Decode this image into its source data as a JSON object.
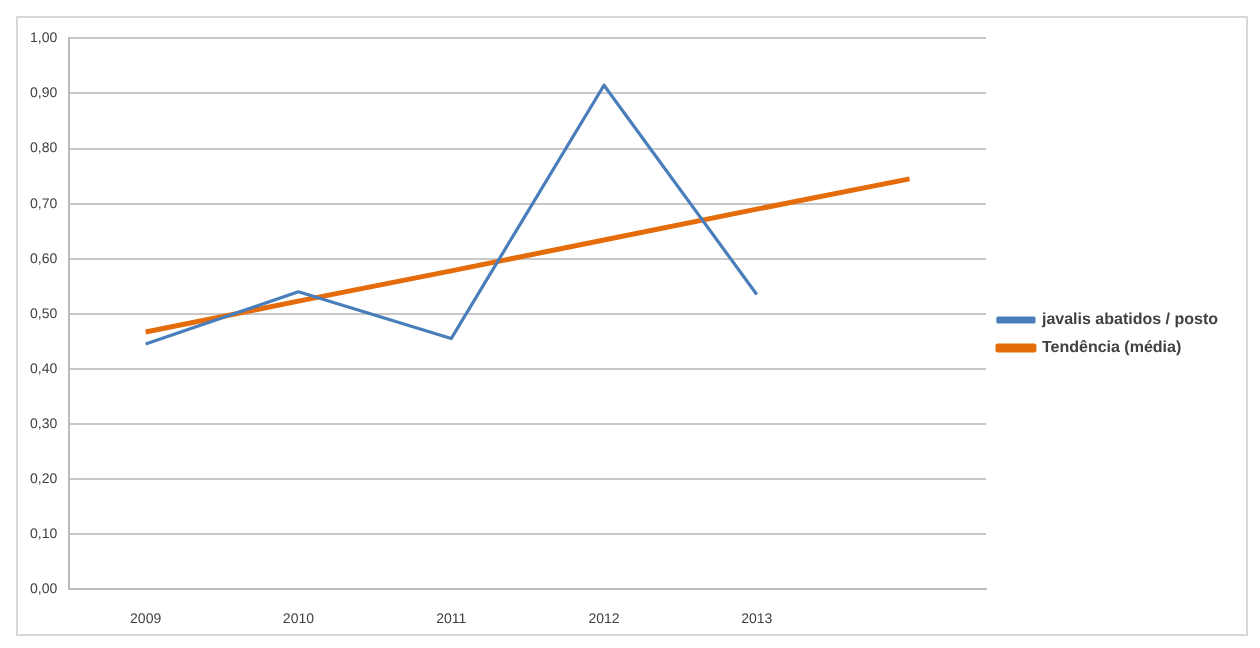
{
  "chart_data": {
    "type": "line",
    "categories": [
      "2009",
      "2010",
      "2011",
      "2012",
      "2013",
      null
    ],
    "series": [
      {
        "name": "javalis abatidos / posto",
        "color": "#4a7ebb",
        "values": [
          0.445,
          0.54,
          0.455,
          0.915,
          0.535,
          null
        ]
      },
      {
        "name": "Tendência (média)",
        "color": "#e46c0a",
        "values": [
          0.467,
          0.523,
          0.578,
          0.634,
          0.69,
          0.745
        ]
      }
    ],
    "ylim": [
      0,
      1
    ],
    "yticks": [
      {
        "value": 0,
        "label": "0,00"
      },
      {
        "value": 0.1,
        "label": "0,10"
      },
      {
        "value": 0.2,
        "label": "0,20"
      },
      {
        "value": 0.3,
        "label": "0,30"
      },
      {
        "value": 0.4,
        "label": "0,40"
      },
      {
        "value": 0.5,
        "label": "0,50"
      },
      {
        "value": 0.6,
        "label": "0,60"
      },
      {
        "value": 0.7,
        "label": "0,70"
      },
      {
        "value": 0.8,
        "label": "0,80"
      },
      {
        "value": 0.9,
        "label": "0,90"
      },
      {
        "value": 1,
        "label": "1,00"
      }
    ],
    "grid": "y",
    "legend": "right",
    "marker": "none",
    "line_style": "solid"
  }
}
